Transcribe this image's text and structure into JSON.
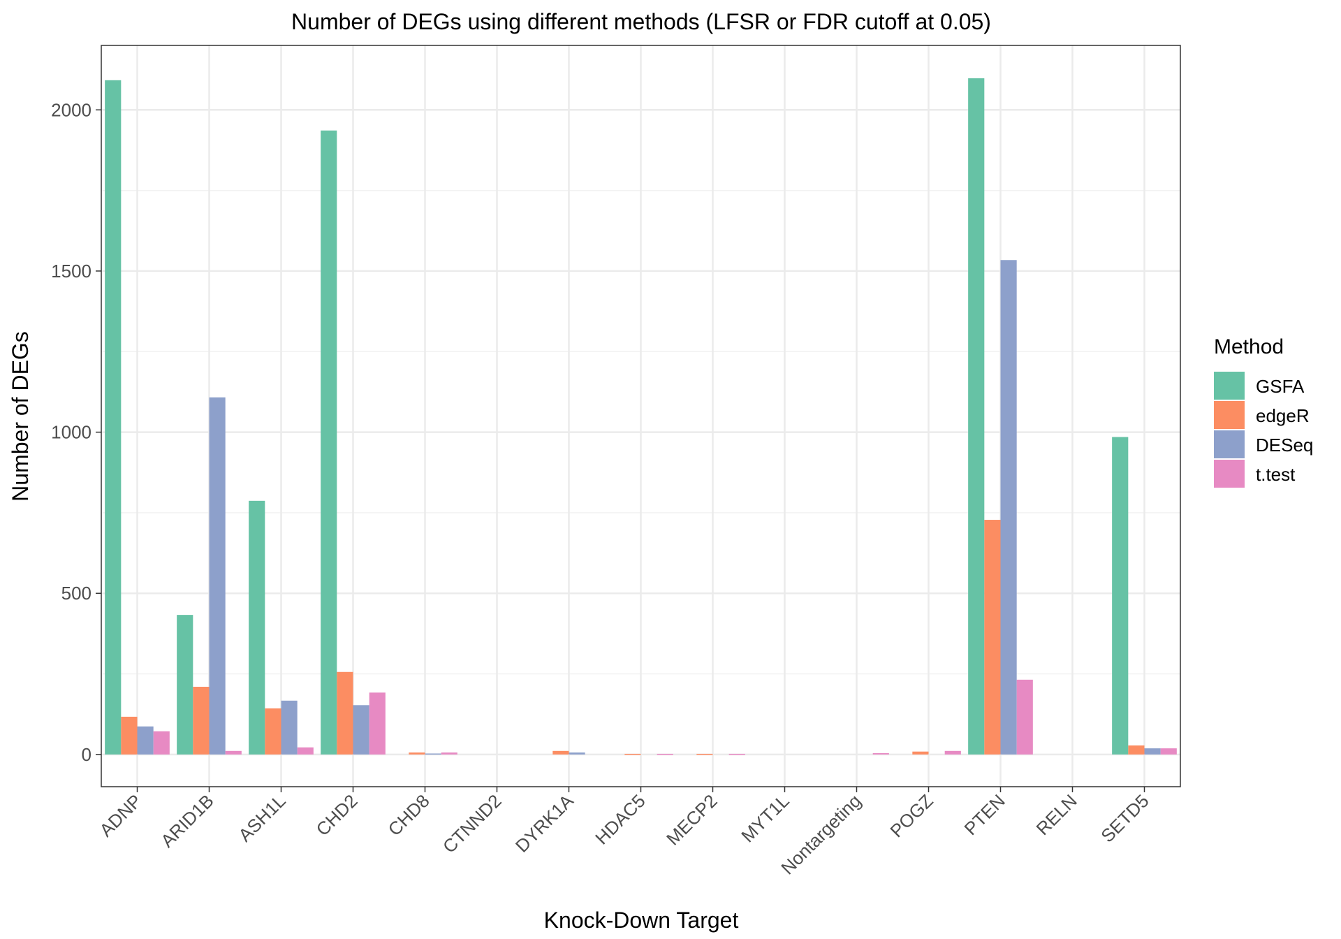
{
  "chart_data": {
    "type": "bar",
    "title": "Number of DEGs using different methods (LFSR or FDR cutoff at 0.05)",
    "xlabel": "Knock-Down Target",
    "ylabel": "Number of DEGs",
    "ylim": [
      -100,
      2200
    ],
    "yticks": [
      0,
      500,
      1000,
      1500,
      2000
    ],
    "grid": true,
    "legend": {
      "title": "Method",
      "position": "right"
    },
    "categories": [
      "ADNP",
      "ARID1B",
      "ASH1L",
      "CHD2",
      "CHD8",
      "CTNND2",
      "DYRK1A",
      "HDAC5",
      "MECP2",
      "MYT1L",
      "Nontargeting",
      "POGZ",
      "PTEN",
      "RELN",
      "SETD5"
    ],
    "series": [
      {
        "name": "GSFA",
        "color": "#66c2a5",
        "values": [
          2092,
          433,
          787,
          1936,
          0,
          0,
          0,
          0,
          0,
          0,
          0,
          0,
          2098,
          0,
          985
        ]
      },
      {
        "name": "edgeR",
        "color": "#fc8d62",
        "values": [
          117,
          210,
          143,
          256,
          6,
          0,
          11,
          2,
          2,
          0,
          0,
          9,
          728,
          0,
          28
        ]
      },
      {
        "name": "DESeq",
        "color": "#8da0cb",
        "values": [
          87,
          1108,
          167,
          153,
          3,
          0,
          6,
          0,
          0,
          0,
          0,
          0,
          1534,
          0,
          19
        ]
      },
      {
        "name": "t.test",
        "color": "#e78ac3",
        "values": [
          72,
          11,
          22,
          192,
          6,
          0,
          0,
          2,
          2,
          0,
          4,
          11,
          232,
          0,
          19
        ]
      }
    ]
  }
}
